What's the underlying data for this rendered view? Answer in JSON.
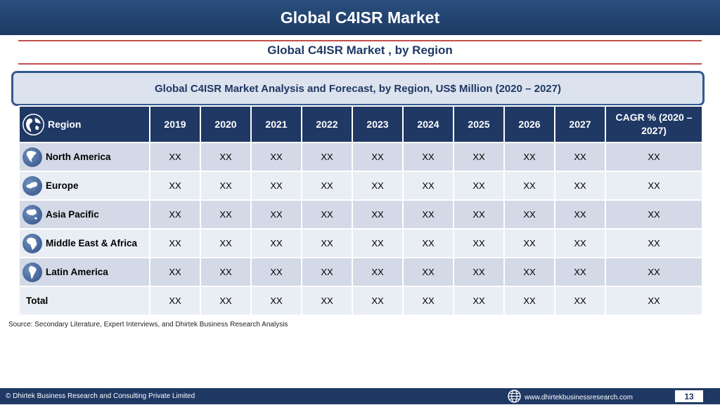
{
  "header": {
    "title": "Global C4ISR Market"
  },
  "subtitle": "Global C4ISR Market , by Region",
  "caption": "Global C4ISR Market  Analysis and Forecast, by Region, US$ Million (2020 – 2027)",
  "table": {
    "columns": [
      "Region",
      "2019",
      "2020",
      "2021",
      "2022",
      "2023",
      "2024",
      "2025",
      "2026",
      "2027",
      "CAGR % (2020 – 2027)"
    ],
    "rows": [
      {
        "region": "North America",
        "icon": "north-america-icon",
        "values": [
          "XX",
          "XX",
          "XX",
          "XX",
          "XX",
          "XX",
          "XX",
          "XX",
          "XX",
          "XX"
        ]
      },
      {
        "region": "Europe",
        "icon": "europe-icon",
        "values": [
          "XX",
          "XX",
          "XX",
          "XX",
          "XX",
          "XX",
          "XX",
          "XX",
          "XX",
          "XX"
        ]
      },
      {
        "region": "Asia Pacific",
        "icon": "asia-pacific-icon",
        "values": [
          "XX",
          "XX",
          "XX",
          "XX",
          "XX",
          "XX",
          "XX",
          "XX",
          "XX",
          "XX"
        ]
      },
      {
        "region": "Middle East & Africa",
        "icon": "africa-icon",
        "values": [
          "XX",
          "XX",
          "XX",
          "XX",
          "XX",
          "XX",
          "XX",
          "XX",
          "XX",
          "XX"
        ]
      },
      {
        "region": "Latin America",
        "icon": "south-america-icon",
        "values": [
          "XX",
          "XX",
          "XX",
          "XX",
          "XX",
          "XX",
          "XX",
          "XX",
          "XX",
          "XX"
        ]
      }
    ],
    "total": {
      "label": "Total",
      "values": [
        "XX",
        "XX",
        "XX",
        "XX",
        "XX",
        "XX",
        "XX",
        "XX",
        "XX",
        "XX"
      ]
    }
  },
  "source": "Source: Secondary Literature, Expert Interviews, and Dhirtek Business Research Analysis",
  "footer": {
    "copyright": "© Dhirtek Business Research and Consulting Private Limited",
    "website": "www.dhirtekbusinessresearch.com",
    "page_number": "13"
  },
  "colors": {
    "navy": "#1f3864",
    "accent_red": "#c0504d",
    "row_dark": "#d3d9e6",
    "row_light": "#e9edf4"
  }
}
